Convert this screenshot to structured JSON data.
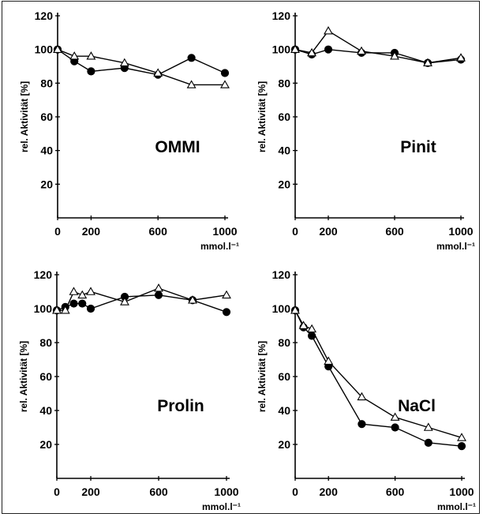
{
  "chart_data": [
    {
      "type": "line",
      "title": "OMMI",
      "xlabel": "mmol.l⁻¹",
      "ylabel": "rel. Aktivität [%]",
      "xlim": [
        0,
        1000
      ],
      "ylim": [
        0,
        120
      ],
      "xticks": [
        "0",
        "200",
        "600",
        "1000"
      ],
      "yticks": [
        "20",
        "40",
        "60",
        "80",
        "100",
        "120"
      ],
      "grid": false,
      "series": [
        {
          "marker": "filled-circle",
          "x": [
            0,
            100,
            200,
            400,
            600,
            800,
            1000
          ],
          "y": [
            100,
            93,
            87,
            89,
            85,
            95,
            86
          ]
        },
        {
          "marker": "open-triangle",
          "x": [
            0,
            100,
            200,
            400,
            600,
            800,
            1000
          ],
          "y": [
            100,
            96,
            96,
            92,
            86,
            79,
            79
          ]
        }
      ]
    },
    {
      "type": "line",
      "title": "Pinit",
      "xlabel": "mmol.l⁻¹",
      "ylabel": "rel. Aktivität [%]",
      "xlim": [
        0,
        1000
      ],
      "ylim": [
        0,
        120
      ],
      "xticks": [
        "0",
        "200",
        "600",
        "1000"
      ],
      "yticks": [
        "20",
        "40",
        "60",
        "80",
        "100",
        "120"
      ],
      "grid": false,
      "series": [
        {
          "marker": "filled-circle",
          "x": [
            0,
            100,
            200,
            400,
            600,
            800,
            1000
          ],
          "y": [
            100,
            97,
            100,
            98,
            98,
            92,
            94
          ]
        },
        {
          "marker": "open-triangle",
          "x": [
            0,
            100,
            200,
            400,
            600,
            800,
            1000
          ],
          "y": [
            100,
            98,
            111,
            99,
            96,
            92,
            95
          ]
        }
      ]
    },
    {
      "type": "line",
      "title": "Prolin",
      "xlabel": "mmol.l⁻¹",
      "ylabel": "rel. Aktivität [%]",
      "xlim": [
        0,
        1000
      ],
      "ylim": [
        0,
        120
      ],
      "xticks": [
        "0",
        "200",
        "600",
        "1000"
      ],
      "yticks": [
        "20",
        "40",
        "60",
        "80",
        "100",
        "120"
      ],
      "grid": false,
      "series": [
        {
          "marker": "filled-circle",
          "x": [
            0,
            50,
            100,
            150,
            200,
            400,
            600,
            800,
            1000
          ],
          "y": [
            99,
            101,
            103,
            103,
            100,
            107,
            108,
            105,
            98
          ]
        },
        {
          "marker": "open-triangle",
          "x": [
            0,
            50,
            100,
            150,
            200,
            400,
            600,
            800,
            1000
          ],
          "y": [
            99,
            99,
            110,
            108,
            110,
            104,
            112,
            105,
            108
          ]
        }
      ]
    },
    {
      "type": "line",
      "title": "NaCl",
      "xlabel": "mmol.l⁻¹",
      "ylabel": "rel. Aktivität [%]",
      "xlim": [
        0,
        1000
      ],
      "ylim": [
        0,
        120
      ],
      "xticks": [
        "0",
        "200",
        "600",
        "1000"
      ],
      "yticks": [
        "20",
        "40",
        "60",
        "80",
        "100",
        "120"
      ],
      "grid": false,
      "series": [
        {
          "marker": "filled-circle",
          "x": [
            0,
            50,
            100,
            200,
            400,
            600,
            800,
            1000
          ],
          "y": [
            99,
            89,
            84,
            66,
            32,
            30,
            21,
            19
          ]
        },
        {
          "marker": "open-triangle",
          "x": [
            0,
            50,
            100,
            200,
            400,
            600,
            800,
            1000
          ],
          "y": [
            99,
            90,
            88,
            69,
            48,
            36,
            30,
            24
          ]
        }
      ]
    }
  ]
}
